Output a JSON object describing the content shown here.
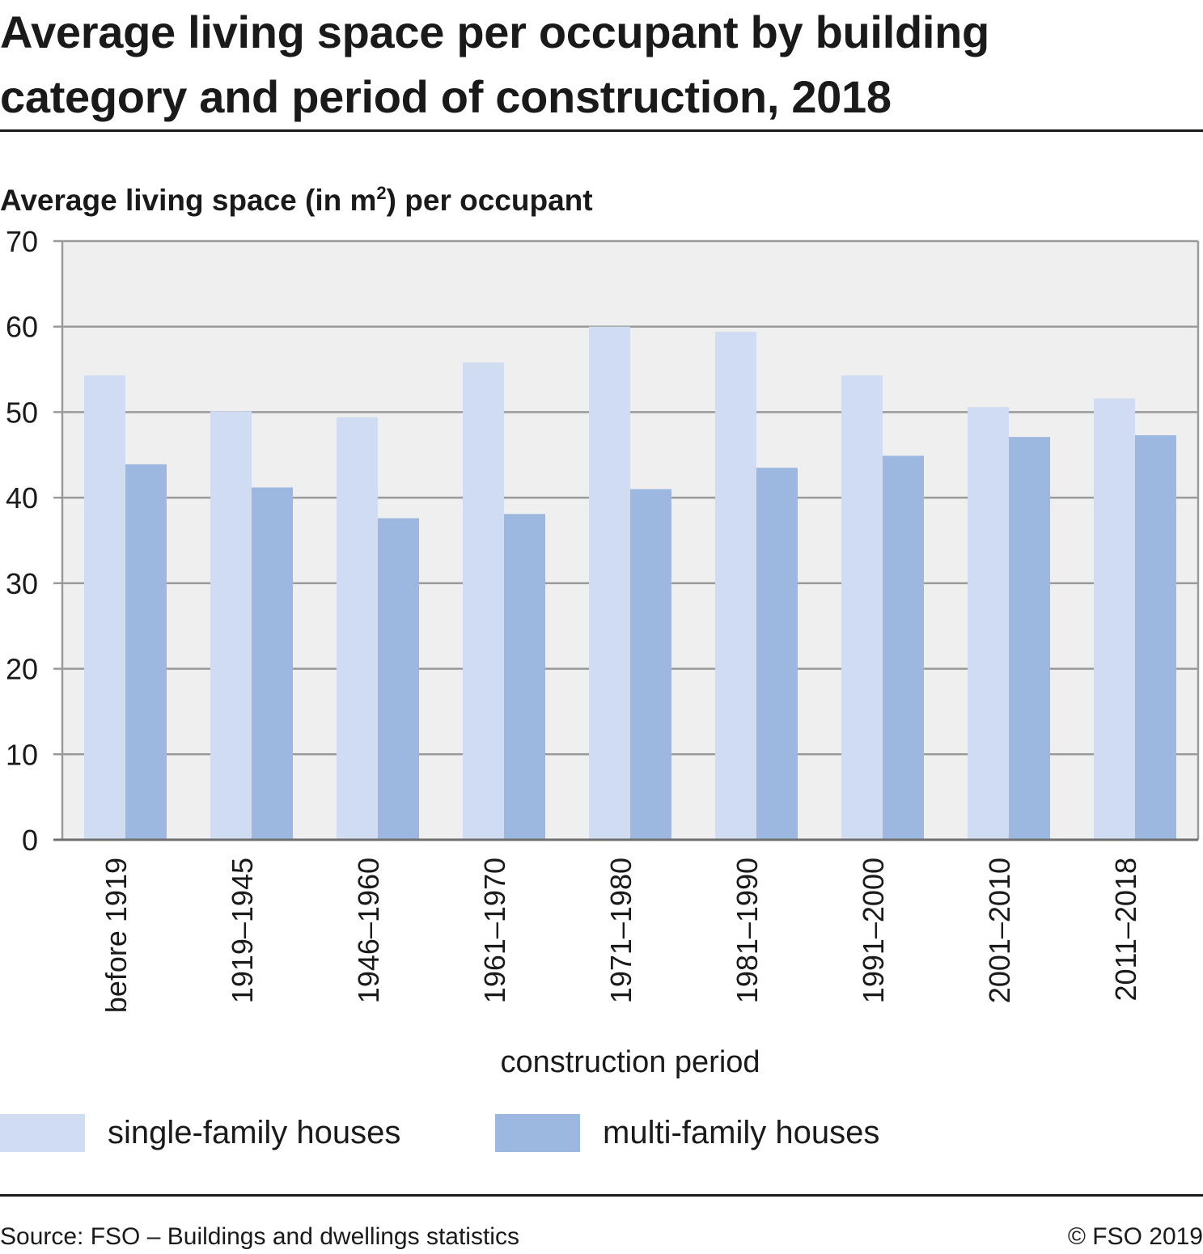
{
  "title_line1": "Average living space per occupant by building",
  "title_line2": "category and period of construction, 2018",
  "ylabel_main": "Average living space (in m",
  "ylabel_sup": "2",
  "ylabel_end": ") per occupant",
  "xlabel": "construction period",
  "source": "Source: FSO – Buildings and dwellings statistics",
  "copyright": "© FSO 2019",
  "colors": {
    "single": "#d0dcf2",
    "multi": "#9db8e0",
    "plot_bg": "#efefef",
    "grid": "#9a9a9a",
    "text": "#1a1a1a"
  },
  "chart_data": {
    "type": "bar",
    "categories": [
      "before 1919",
      "1919–1945",
      "1946–1960",
      "1961–1970",
      "1971–1980",
      "1981–1990",
      "1991–2000",
      "2001–2010",
      "2011–2018"
    ],
    "series": [
      {
        "name": "single-family houses",
        "values": [
          54.3,
          50.1,
          49.4,
          55.8,
          60.0,
          59.4,
          54.3,
          50.6,
          51.6
        ]
      },
      {
        "name": "multi-family houses",
        "values": [
          43.9,
          41.2,
          37.6,
          38.1,
          41.0,
          43.5,
          44.9,
          47.1,
          47.3
        ]
      }
    ],
    "ylim": [
      0,
      70
    ],
    "yticks": [
      0,
      10,
      20,
      30,
      40,
      50,
      60,
      70
    ],
    "grid": true,
    "legend": "bottom"
  }
}
